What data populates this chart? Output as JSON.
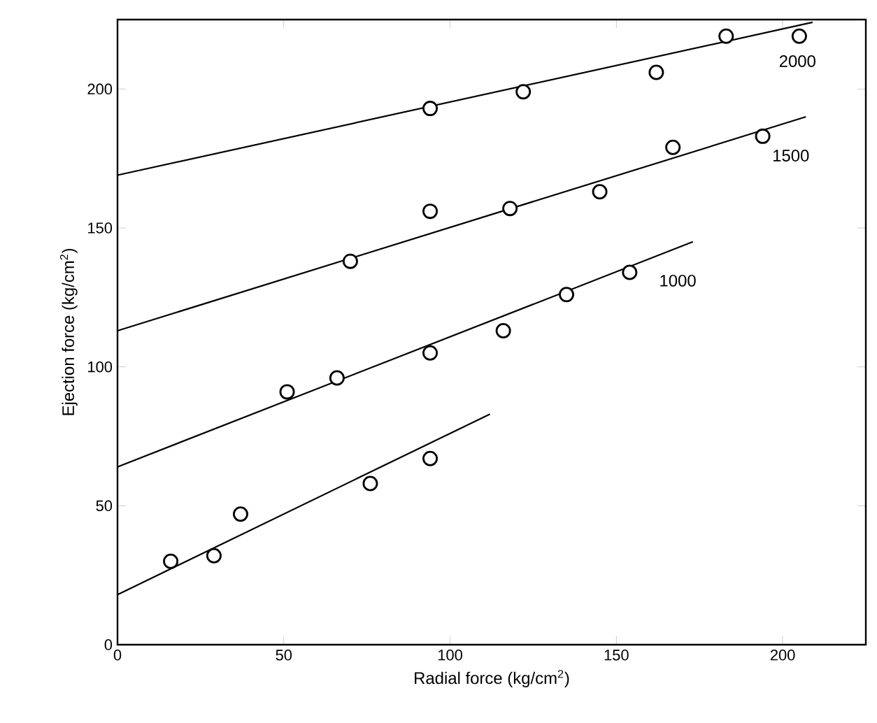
{
  "chart_data": {
    "type": "scatter",
    "xlabel": "Radial force (kg/cm$^{2}$)",
    "ylabel": "Ejection force (kg/cm$^{2}$)",
    "xlim": [
      0,
      225
    ],
    "ylim": [
      0,
      225
    ],
    "xticks": [
      0,
      50,
      100,
      150,
      200
    ],
    "yticks": [
      0,
      50,
      100,
      150,
      200
    ],
    "grid": false,
    "marker": "circle",
    "series": [
      {
        "color": "#000000",
        "x": [
          16,
          29,
          37,
          76,
          94
        ],
        "values": [
          30,
          32,
          47,
          58,
          67
        ]
      },
      {
        "color": "#000000",
        "x": [
          51,
          66,
          94,
          116,
          135,
          154
        ],
        "values": [
          91,
          96,
          105,
          113,
          126,
          134
        ]
      },
      {
        "color": "#000000",
        "x": [
          70,
          94,
          118,
          145,
          167,
          194
        ],
        "values": [
          138,
          156,
          157,
          163,
          179,
          183
        ]
      },
      {
        "color": "#000000",
        "x": [
          94,
          122,
          162,
          183,
          205
        ],
        "values": [
          193,
          199,
          206,
          219,
          219
        ]
      },
      {
        "type": "line",
        "color": "#000000",
        "marker": "none",
        "line_style": "solid",
        "x": [
          0,
          112
        ],
        "values": [
          18,
          83
        ]
      },
      {
        "type": "line",
        "name": "1000",
        "color": "#000000",
        "marker": "none",
        "line_style": "solid",
        "x": [
          0,
          173
        ],
        "values": [
          64,
          145
        ]
      },
      {
        "type": "line",
        "name": "1500",
        "color": "#000000",
        "marker": "none",
        "line_style": "solid",
        "x": [
          0,
          207
        ],
        "values": [
          113,
          190
        ]
      },
      {
        "type": "line",
        "name": "2000",
        "color": "#000000",
        "marker": "none",
        "line_style": "solid",
        "x": [
          0,
          209
        ],
        "values": [
          169,
          224
        ]
      }
    ]
  }
}
